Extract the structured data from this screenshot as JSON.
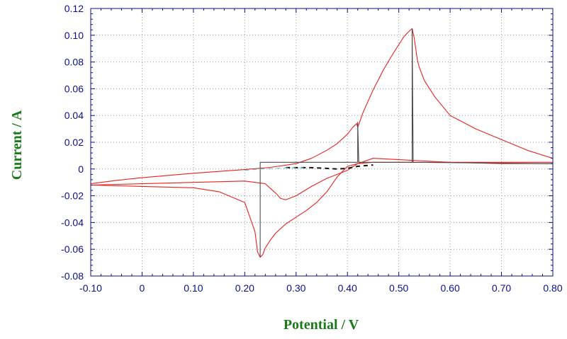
{
  "colors": {
    "axis": "#0a0f8c",
    "grid": "#9a9a9a",
    "axis_title": "#1a7a1a",
    "trace_red": "#e8211e",
    "trace_gray": "#4a4a4a",
    "trace_black": "#111111",
    "trace_cyan": "#5cc8d8"
  },
  "chart_data": {
    "type": "line",
    "title": "",
    "xlabel": "Potential / V",
    "ylabel": "Current / A",
    "xlim": [
      -0.1,
      0.8
    ],
    "ylim": [
      -0.08,
      0.12
    ],
    "grid": "dotted",
    "legend": "none",
    "x_ticks": [
      {
        "value": -0.1,
        "label": "-0.10"
      },
      {
        "value": 0.0,
        "label": "0"
      },
      {
        "value": 0.1,
        "label": "0.10"
      },
      {
        "value": 0.2,
        "label": "0.20"
      },
      {
        "value": 0.3,
        "label": "0.30"
      },
      {
        "value": 0.4,
        "label": "0.40"
      },
      {
        "value": 0.5,
        "label": "0.50"
      },
      {
        "value": 0.6,
        "label": "0.60"
      },
      {
        "value": 0.7,
        "label": "0.70"
      },
      {
        "value": 0.8,
        "label": "0.80"
      }
    ],
    "y_ticks": [
      {
        "value": 0.12,
        "label": "0.12"
      },
      {
        "value": 0.1,
        "label": "0.10"
      },
      {
        "value": 0.08,
        "label": "0.08"
      },
      {
        "value": 0.06,
        "label": "0.06"
      },
      {
        "value": 0.04,
        "label": "0.04"
      },
      {
        "value": 0.02,
        "label": "0.02"
      },
      {
        "value": 0.0,
        "label": "0"
      },
      {
        "value": -0.02,
        "label": "-0.02"
      },
      {
        "value": -0.04,
        "label": "-0.04"
      },
      {
        "value": -0.06,
        "label": "-0.06"
      },
      {
        "value": -0.08,
        "label": "-0.08"
      }
    ],
    "series": [
      {
        "color_key": "trace_red",
        "style": "solid",
        "x": [
          -0.1,
          -0.05,
          0.0,
          0.05,
          0.1,
          0.15,
          0.2,
          0.25,
          0.3,
          0.33,
          0.36,
          0.38,
          0.4,
          0.41,
          0.418,
          0.42
        ],
        "y": [
          -0.011,
          -0.0085,
          -0.0065,
          -0.0048,
          -0.0032,
          -0.0018,
          -0.0004,
          0.0012,
          0.004,
          0.008,
          0.014,
          0.019,
          0.026,
          0.031,
          0.034,
          0.031
        ]
      },
      {
        "color_key": "trace_red",
        "style": "solid",
        "x": [
          0.42,
          0.43,
          0.45,
          0.47,
          0.49,
          0.5,
          0.51,
          0.52,
          0.526,
          0.53,
          0.533,
          0.536,
          0.54,
          0.55,
          0.57,
          0.6,
          0.65,
          0.7,
          0.75,
          0.8
        ],
        "y": [
          0.031,
          0.042,
          0.059,
          0.074,
          0.087,
          0.093,
          0.099,
          0.103,
          0.105,
          0.098,
          0.09,
          0.082,
          0.076,
          0.066,
          0.054,
          0.04,
          0.03,
          0.022,
          0.014,
          0.008
        ]
      },
      {
        "color_key": "trace_red",
        "style": "solid",
        "x": [
          0.8,
          0.7,
          0.6,
          0.55,
          0.5,
          0.45,
          0.42,
          0.4,
          0.38,
          0.36,
          0.34,
          0.32,
          0.3,
          0.28,
          0.26,
          0.25,
          0.24,
          0.235,
          0.23,
          0.225,
          0.22,
          0.2,
          0.15,
          0.1,
          0.0,
          -0.1
        ],
        "y": [
          0.005,
          0.005,
          0.005,
          0.005,
          0.005,
          0.005,
          0.004,
          0.002,
          -0.006,
          -0.017,
          -0.025,
          -0.031,
          -0.036,
          -0.041,
          -0.048,
          -0.053,
          -0.059,
          -0.064,
          -0.066,
          -0.062,
          -0.047,
          -0.025,
          -0.017,
          -0.014,
          -0.013,
          -0.012
        ]
      },
      {
        "color_key": "trace_red",
        "style": "solid",
        "x": [
          -0.1,
          0.0,
          0.1,
          0.2,
          0.24,
          0.26,
          0.27,
          0.28,
          0.3,
          0.33,
          0.36,
          0.4,
          0.42,
          0.45,
          0.5,
          0.55,
          0.6,
          0.7,
          0.8
        ],
        "y": [
          -0.012,
          -0.011,
          -0.01,
          -0.009,
          -0.011,
          -0.018,
          -0.022,
          -0.023,
          -0.02,
          -0.013,
          -0.007,
          -0.001,
          0.004,
          0.008,
          0.007,
          0.006,
          0.005,
          0.004,
          0.004
        ]
      },
      {
        "color_key": "trace_gray",
        "style": "solid",
        "x": [
          0.23,
          0.23,
          0.232,
          0.42,
          0.42,
          0.422,
          0.526,
          0.526,
          0.528,
          0.8
        ],
        "y": [
          -0.066,
          0.005,
          0.005,
          0.005,
          0.035,
          0.005,
          0.005,
          0.105,
          0.005,
          0.004
        ]
      },
      {
        "color_key": "trace_black",
        "style": "dashed",
        "x": [
          0.28,
          0.3,
          0.33,
          0.36,
          0.38,
          0.4,
          0.42,
          0.45
        ],
        "y": [
          0.001,
          0.001,
          0.001,
          0.0005,
          0.0,
          0.0005,
          0.002,
          0.003
        ]
      },
      {
        "color_key": "trace_cyan",
        "style": "dashed",
        "x": [
          0.2,
          0.23,
          0.26,
          0.29,
          0.32
        ],
        "y": [
          -0.001,
          0.0,
          0.0005,
          0.001,
          0.001
        ]
      }
    ]
  }
}
